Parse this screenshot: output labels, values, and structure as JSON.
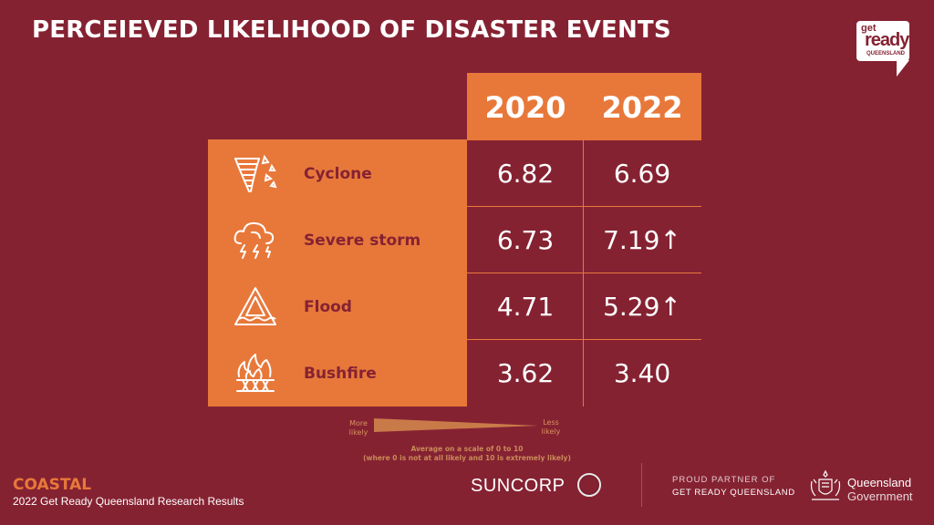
{
  "title": "PERCEIEVED LIKELIHOOD OF DISASTER EVENTS",
  "logo": {
    "line1": "get",
    "line2": "ready",
    "line3": "QUEENSLAND"
  },
  "years": [
    "2020",
    "2022"
  ],
  "rows": [
    {
      "label": "Cyclone",
      "icon": "cyclone-icon",
      "v2020": "6.82",
      "v2022": "6.69"
    },
    {
      "label": "Severe storm",
      "icon": "storm-cloud-icon",
      "v2020": "6.73",
      "v2022": "7.19↑"
    },
    {
      "label": "Flood",
      "icon": "flood-warning-icon",
      "v2020": "4.71",
      "v2022": "5.29↑"
    },
    {
      "label": "Bushfire",
      "icon": "bushfire-icon",
      "v2020": "3.62",
      "v2022": "3.40"
    }
  ],
  "scale": {
    "more": "More likely",
    "less": "Less likely",
    "note_line1": "Average on a scale of 0 to 10",
    "note_line2": "(where 0 is not at all likely and 10 is extremely likely)"
  },
  "footer": {
    "region": "COASTAL",
    "subtitle": "2022 Get Ready Queensland Research Results",
    "suncorp": "SUNCORP",
    "partner_line1": "PROUD PARTNER OF",
    "partner_line2": "GET READY QUEENSLAND",
    "qld_line1": "Queensland",
    "qld_line2": "Government"
  },
  "colors": {
    "background": "#852232",
    "accent": "#e8783a"
  }
}
